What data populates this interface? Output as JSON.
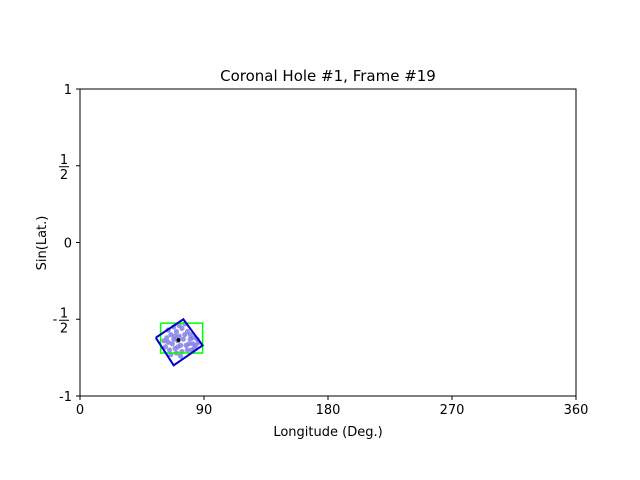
{
  "chart_data": {
    "type": "scatter",
    "title": "Coronal Hole #1, Frame #19",
    "xlabel": "Longitude (Deg.)",
    "ylabel": "Sin(Lat.)",
    "xlim": [
      0,
      360
    ],
    "ylim": [
      -1,
      1
    ],
    "grid": false,
    "xticks": [
      {
        "value": 0,
        "label": "0"
      },
      {
        "value": 90,
        "label": "90"
      },
      {
        "value": 180,
        "label": "180"
      },
      {
        "value": 270,
        "label": "270"
      },
      {
        "value": 360,
        "label": "360"
      }
    ],
    "yticks": [
      {
        "value": -1,
        "label": "-1"
      },
      {
        "value": -0.5,
        "label": "-½",
        "fraction": true,
        "sign": "-"
      },
      {
        "value": 0,
        "label": "0"
      },
      {
        "value": 0.5,
        "label": "½",
        "fraction": true,
        "sign": ""
      },
      {
        "value": 1,
        "label": "1"
      }
    ],
    "colors": {
      "bounding_box": "#00ff00",
      "rotated_box": "#0000cc",
      "hole_pixels": "#8080e6",
      "centroid": "#000000"
    },
    "series": [
      {
        "kind": "bounding_box",
        "x": [
          58.5,
          89,
          89,
          58.5,
          58.5
        ],
        "y": [
          -0.525,
          -0.525,
          -0.72,
          -0.72,
          -0.525
        ]
      },
      {
        "kind": "rotated_box",
        "x": [
          55,
          75,
          89,
          68,
          55
        ],
        "y": [
          -0.62,
          -0.5,
          -0.67,
          -0.8,
          -0.62
        ]
      },
      {
        "kind": "hole_pixels",
        "x": [
          63,
          66,
          70,
          74,
          78,
          82,
          86,
          64,
          68,
          72,
          76,
          80,
          84,
          62,
          67,
          71,
          75,
          79,
          83,
          65,
          69,
          73,
          77,
          81,
          64,
          68,
          72,
          70,
          74,
          78,
          66,
          73,
          80,
          76,
          69,
          85,
          61,
          71,
          82
        ],
        "y": [
          -0.62,
          -0.6,
          -0.58,
          -0.56,
          -0.58,
          -0.62,
          -0.65,
          -0.65,
          -0.63,
          -0.61,
          -0.6,
          -0.63,
          -0.67,
          -0.68,
          -0.66,
          -0.64,
          -0.63,
          -0.66,
          -0.69,
          -0.7,
          -0.69,
          -0.67,
          -0.67,
          -0.7,
          -0.57,
          -0.55,
          -0.54,
          -0.72,
          -0.71,
          -0.7,
          -0.73,
          -0.74,
          -0.6,
          -0.53,
          -0.61,
          -0.63,
          -0.64,
          -0.68,
          -0.66
        ]
      },
      {
        "kind": "centroid",
        "x": [
          71.5
        ],
        "y": [
          -0.635
        ]
      }
    ]
  }
}
